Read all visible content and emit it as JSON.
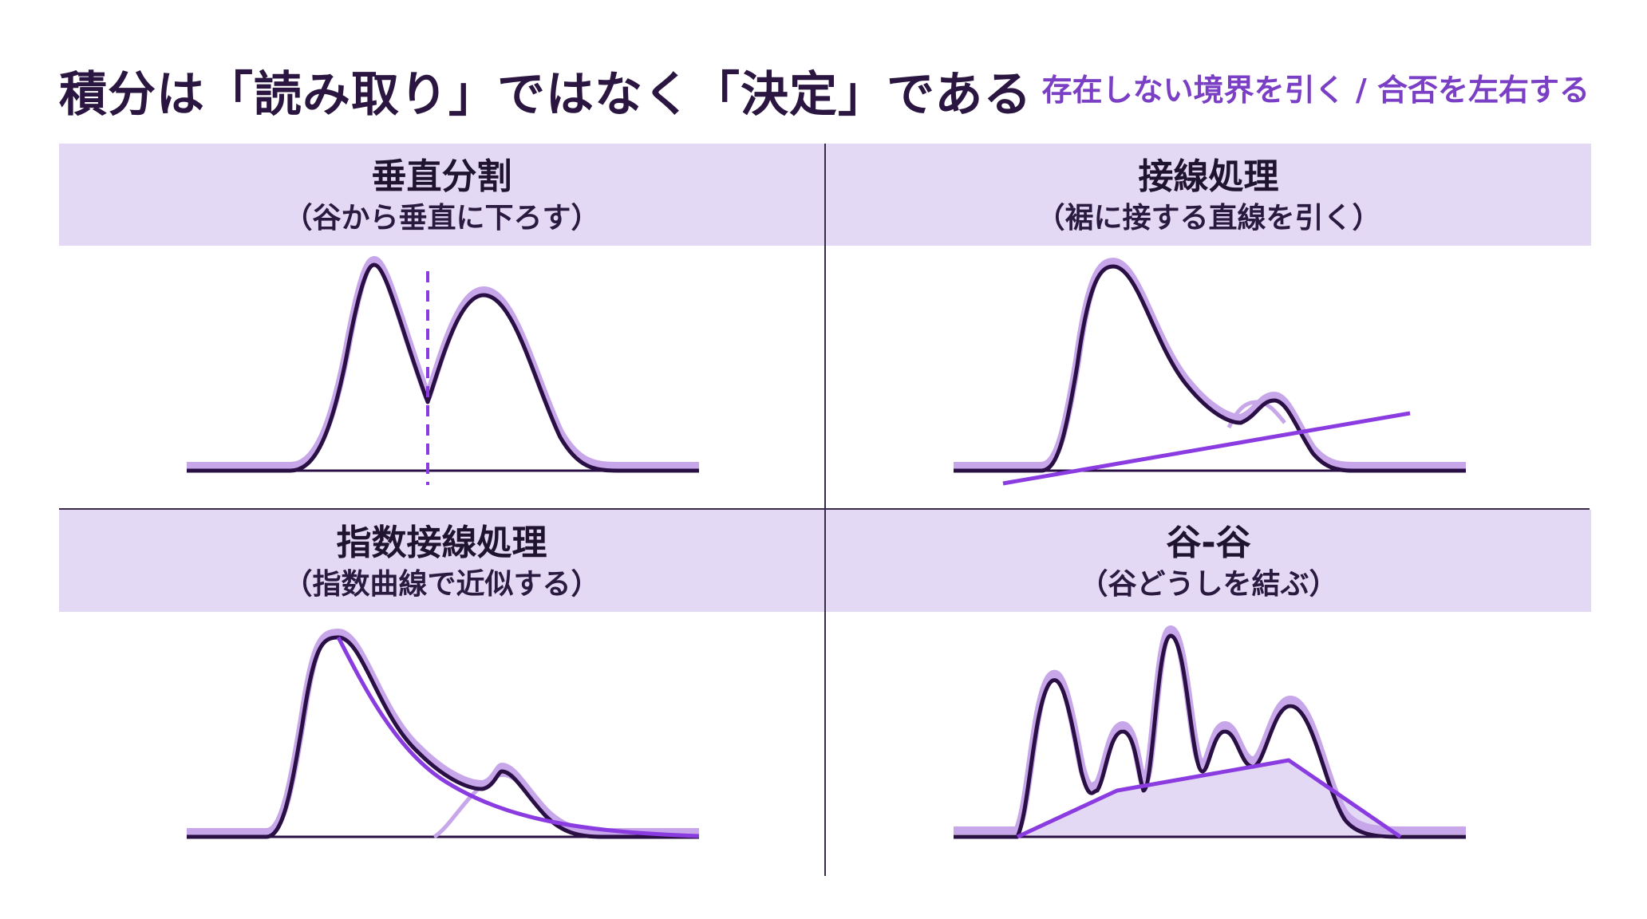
{
  "header": {
    "title": "積分は「読み取り」ではなく「決定」である",
    "subtitle": "存在しない境界を引く / 合否を左右する"
  },
  "panels": [
    {
      "title": "垂直分割",
      "subtitle": "（谷から垂直に下ろす）"
    },
    {
      "title": "接線処理",
      "subtitle": "（裾に接する直線を引く）"
    },
    {
      "title": "指数接線処理",
      "subtitle": "（指数曲線で近似する）"
    },
    {
      "title": "谷-谷",
      "subtitle": "（谷どうしを結ぶ）"
    }
  ],
  "colors": {
    "title": "#2a1640",
    "accent": "#7a3fc4",
    "header_band": "#e4d9f5",
    "curve_dark": "#2a0f45",
    "curve_light": "#c8a6ea",
    "boundary": "#8a3ce0",
    "fill": "#e4d9f5"
  }
}
